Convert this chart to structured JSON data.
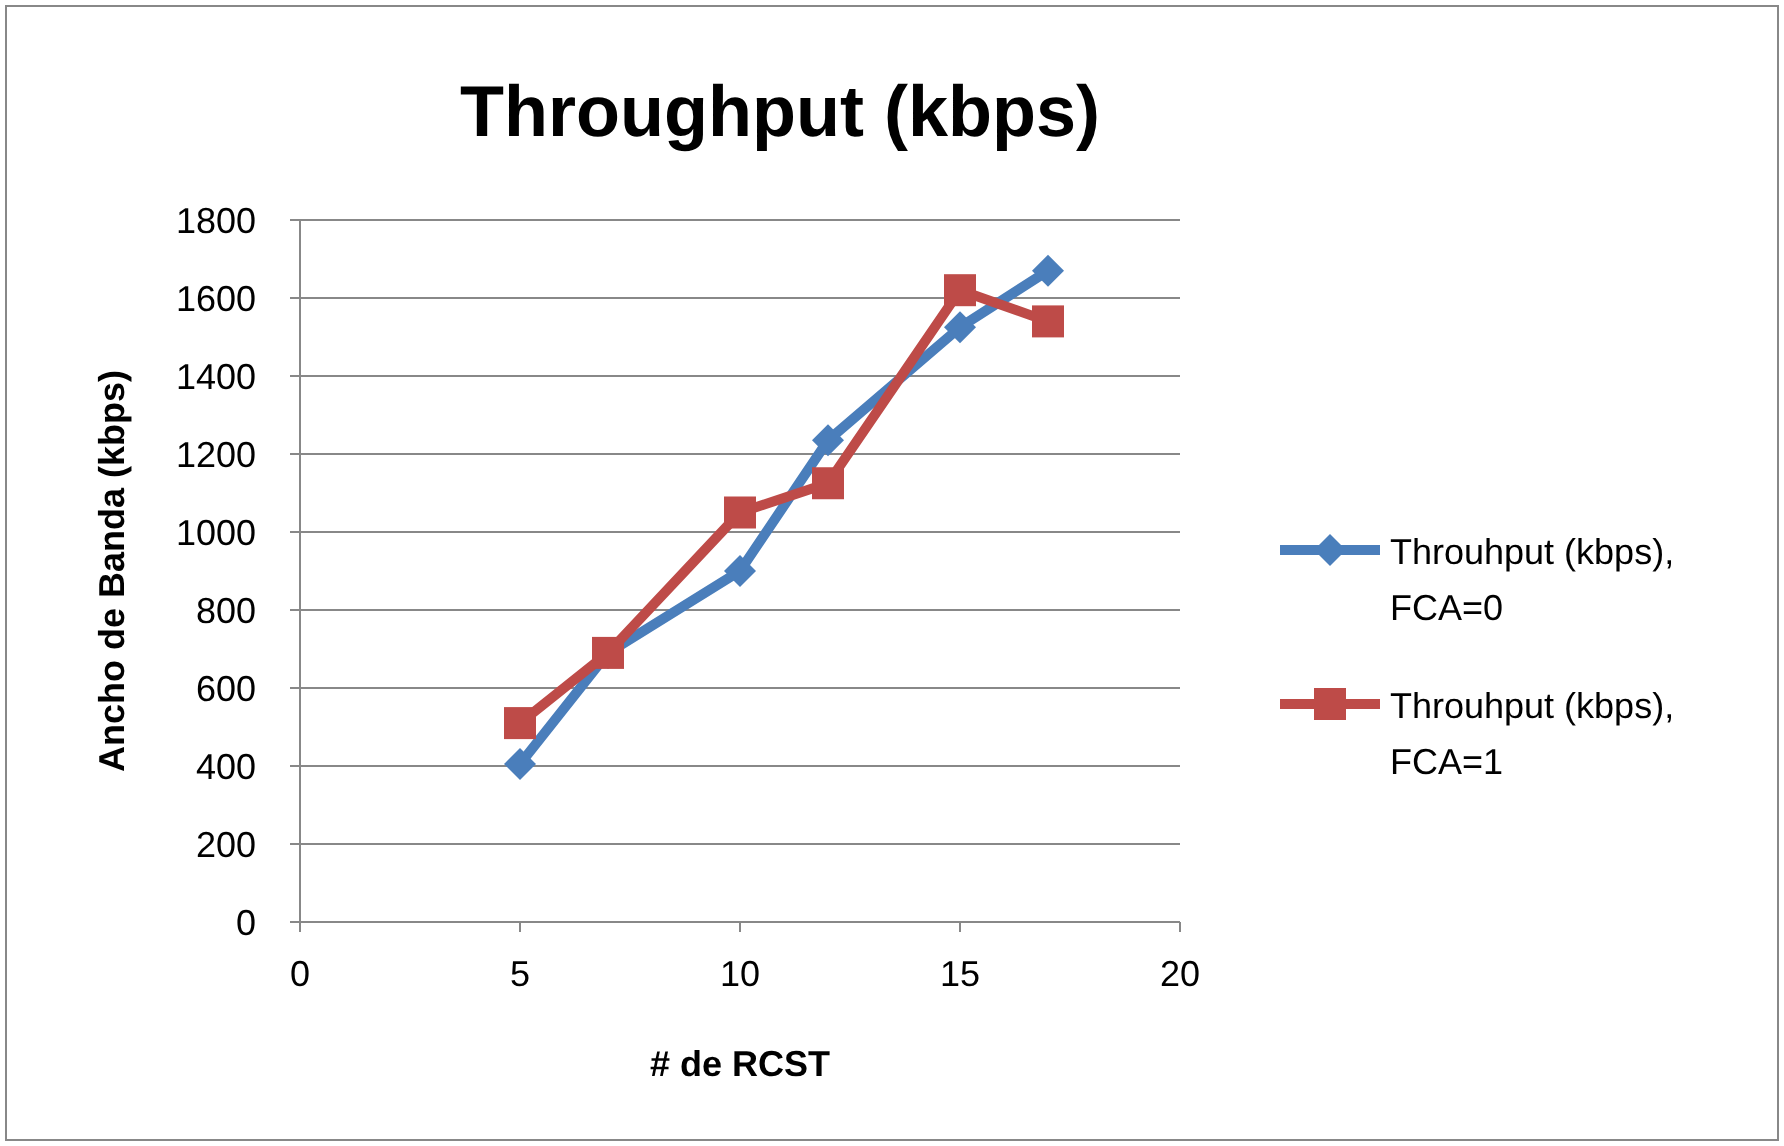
{
  "chart_data": {
    "type": "line",
    "title": "Throughput (kbps)",
    "xlabel": "# de RCST",
    "ylabel": "Ancho de Banda (kbps)",
    "xlim": [
      0,
      20
    ],
    "xticks": [
      0,
      5,
      10,
      15,
      20
    ],
    "ylim": [
      0,
      1800
    ],
    "yticks": [
      0,
      200,
      400,
      600,
      800,
      1000,
      1200,
      1400,
      1600,
      1800
    ],
    "grid": "y",
    "legend": "right",
    "series": [
      {
        "name": "Throuhput (kbps), FCA=0",
        "color": "#4a7ebb",
        "marker": "diamond",
        "x": [
          5,
          7,
          10,
          12,
          15,
          17
        ],
        "values": [
          405,
          690,
          900,
          1235,
          1525,
          1670
        ]
      },
      {
        "name": "Throuhput (kbps), FCA=1",
        "color": "#be4b48",
        "marker": "square",
        "x": [
          5,
          7,
          10,
          12,
          15,
          17
        ],
        "values": [
          510,
          690,
          1050,
          1125,
          1620,
          1540
        ]
      }
    ]
  }
}
